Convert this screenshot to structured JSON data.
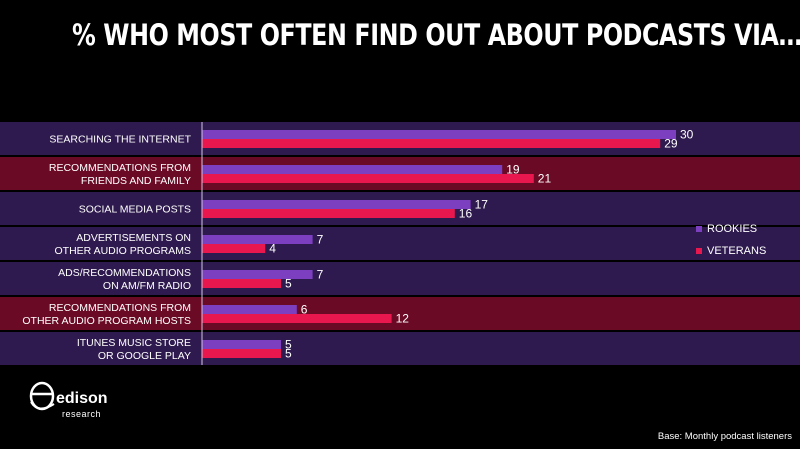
{
  "title": "% WHO MOST OFTEN FIND OUT ABOUT PODCASTS VIA…",
  "base_note": "Base: Monthly podcast listeners",
  "logo": {
    "name": "edison",
    "sub": "research"
  },
  "colors": {
    "background": "#000000",
    "band_purple": "#2e1a4e",
    "band_red": "#6b0a25",
    "rookies": "#7b3fbf",
    "veterans": "#e8184f"
  },
  "chart_data": {
    "type": "bar",
    "orientation": "horizontal",
    "categories": [
      [
        "SEARCHING THE INTERNET"
      ],
      [
        "RECOMMENDATIONS FROM",
        "FRIENDS AND FAMILY"
      ],
      [
        "SOCIAL MEDIA POSTS"
      ],
      [
        "ADVERTISEMENTS ON",
        "OTHER AUDIO PROGRAMS"
      ],
      [
        "ADS/RECOMMENDATIONS",
        "ON AM/FM RADIO"
      ],
      [
        "RECOMMENDATIONS FROM",
        "OTHER AUDIO PROGRAM HOSTS"
      ],
      [
        "ITUNES MUSIC STORE",
        "OR GOOGLE PLAY"
      ]
    ],
    "band_highlight": [
      false,
      true,
      false,
      false,
      false,
      true,
      false
    ],
    "series": [
      {
        "name": "ROOKIES",
        "values": [
          30,
          19,
          17,
          7,
          7,
          6,
          5
        ]
      },
      {
        "name": "VETERANS",
        "values": [
          29,
          21,
          16,
          4,
          5,
          12,
          5
        ]
      }
    ],
    "xlim": [
      0,
      35
    ],
    "legend_position": "right"
  }
}
